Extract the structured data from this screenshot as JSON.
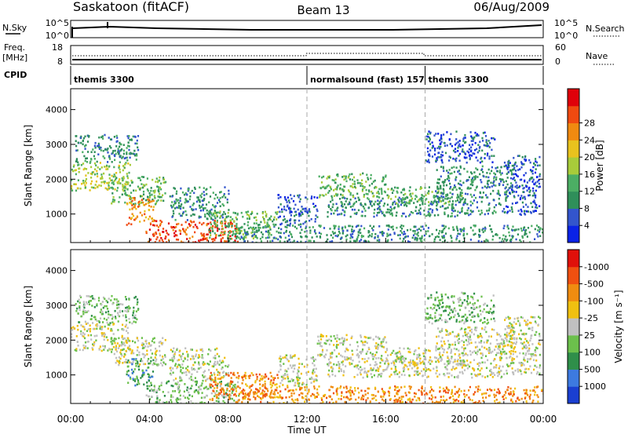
{
  "header": {
    "station": "Saskatoon (fitACF)",
    "beam": "Beam 13",
    "date": "06/Aug/2009"
  },
  "top_panels": {
    "nsky_label": "N.Sky",
    "nsky_ticks": [
      "10^5",
      "10^0"
    ],
    "nsearch_label": "N.Search",
    "nsearch_ticks": [
      "10^5",
      "10^0"
    ],
    "freq_label": "Freq.",
    "freq_unit": "[MHz]",
    "freq_ticks": [
      "18",
      "8"
    ],
    "nave_label": "Nave",
    "nave_ticks": [
      "60",
      "0"
    ],
    "cpid_label": "CPID",
    "cpid_segments": [
      {
        "label": "themis 3300",
        "start_h": 0
      },
      {
        "label": "normalsound (fast) 157",
        "start_h": 12
      },
      {
        "label": "themis 3300",
        "start_h": 18
      }
    ]
  },
  "chart_data": [
    {
      "type": "heatmap",
      "panel": "power",
      "ylabel": "Slant Range [km]",
      "y_ticks": [
        1000,
        2000,
        3000,
        4000
      ],
      "ylim": [
        180,
        4600
      ],
      "xlim": [
        0,
        24
      ],
      "colorbar_label": "Power [dB]",
      "colorbar_ticks": [
        "4",
        "8",
        "12",
        "16",
        "20",
        "24",
        "28"
      ],
      "colorbar_colors": [
        "#0a22e6",
        "#3355cc",
        "#2f8f5a",
        "#4cae64",
        "#a8cc3a",
        "#e8c21e",
        "#f08a10",
        "#f04a10",
        "#e0000a"
      ],
      "regions": [
        {
          "h0": 0.0,
          "h1": 3.0,
          "r0": 1700,
          "r1": 2500,
          "level": 16
        },
        {
          "h0": 0.2,
          "h1": 3.4,
          "r0": 2500,
          "r1": 3300,
          "level": 8
        },
        {
          "h0": 2.0,
          "h1": 4.8,
          "r0": 1300,
          "r1": 2100,
          "level": 12
        },
        {
          "h0": 2.8,
          "h1": 4.2,
          "r0": 700,
          "r1": 1500,
          "level": 24
        },
        {
          "h0": 3.8,
          "h1": 8.5,
          "r0": 180,
          "r1": 850,
          "level": 28
        },
        {
          "h0": 5.0,
          "h1": 8.0,
          "r0": 850,
          "r1": 1800,
          "level": 8
        },
        {
          "h0": 7.0,
          "h1": 10.5,
          "r0": 300,
          "r1": 1100,
          "level": 12
        },
        {
          "h0": 8.0,
          "h1": 24.0,
          "r0": 180,
          "r1": 700,
          "level": 8
        },
        {
          "h0": 10.5,
          "h1": 12.5,
          "r0": 700,
          "r1": 1600,
          "level": 4
        },
        {
          "h0": 12.5,
          "h1": 16.0,
          "r0": 1500,
          "r1": 2200,
          "level": 12
        },
        {
          "h0": 13.0,
          "h1": 22.0,
          "r0": 950,
          "r1": 1500,
          "level": 8
        },
        {
          "h0": 16.0,
          "h1": 20.0,
          "r0": 1300,
          "r1": 1800,
          "level": 12
        },
        {
          "h0": 18.5,
          "h1": 22.5,
          "r0": 1500,
          "r1": 2400,
          "level": 8
        },
        {
          "h0": 22.0,
          "h1": 23.8,
          "r0": 1000,
          "r1": 2700,
          "level": 4
        },
        {
          "h0": 18.0,
          "h1": 21.5,
          "r0": 2500,
          "r1": 3400,
          "level": 4
        }
      ]
    },
    {
      "type": "heatmap",
      "panel": "velocity",
      "ylabel": "Slant Range [km]",
      "y_ticks": [
        1000,
        2000,
        3000,
        4000
      ],
      "ylim": [
        180,
        4600
      ],
      "xlim": [
        0,
        24
      ],
      "xlabel": "Time UT",
      "x_ticks": [
        "00:00",
        "04:00",
        "08:00",
        "12:00",
        "16:00",
        "20:00",
        "00:00"
      ],
      "colorbar_label": "Velocity [m s⁻¹]",
      "colorbar_ticks": [
        "1000",
        "500",
        "100",
        "25",
        "-25",
        "-100",
        "-500",
        "-1000"
      ],
      "colorbar_colors": [
        "#1a3fd0",
        "#3d7ae0",
        "#2f8f4a",
        "#6cc04c",
        "#c0c0c0",
        "#f0c010",
        "#f08c10",
        "#f05010",
        "#e0100a"
      ],
      "regions": [
        {
          "h0": 0.0,
          "h1": 3.0,
          "r0": 1700,
          "r1": 2500,
          "level": 25
        },
        {
          "h0": 0.2,
          "h1": 3.4,
          "r0": 2500,
          "r1": 3300,
          "level": 100
        },
        {
          "h0": 2.0,
          "h1": 4.8,
          "r0": 1300,
          "r1": 2100,
          "level": 25
        },
        {
          "h0": 2.8,
          "h1": 4.2,
          "r0": 700,
          "r1": 1500,
          "level": 500
        },
        {
          "h0": 3.8,
          "h1": 8.5,
          "r0": 180,
          "r1": 850,
          "level": 100
        },
        {
          "h0": 5.0,
          "h1": 8.0,
          "r0": 850,
          "r1": 1800,
          "level": 25
        },
        {
          "h0": 7.0,
          "h1": 10.5,
          "r0": 300,
          "r1": 1100,
          "level": -100
        },
        {
          "h0": 8.0,
          "h1": 24.0,
          "r0": 180,
          "r1": 700,
          "level": -100
        },
        {
          "h0": 10.5,
          "h1": 12.5,
          "r0": 700,
          "r1": 1600,
          "level": 25
        },
        {
          "h0": 12.5,
          "h1": 16.0,
          "r0": 1500,
          "r1": 2200,
          "level": 25
        },
        {
          "h0": 13.0,
          "h1": 22.0,
          "r0": 950,
          "r1": 1500,
          "level": 25
        },
        {
          "h0": 16.0,
          "h1": 20.0,
          "r0": 1300,
          "r1": 1800,
          "level": 25
        },
        {
          "h0": 18.5,
          "h1": 22.5,
          "r0": 1500,
          "r1": 2400,
          "level": 25
        },
        {
          "h0": 22.0,
          "h1": 23.8,
          "r0": 1000,
          "r1": 2700,
          "level": 25
        },
        {
          "h0": 18.0,
          "h1": 21.5,
          "r0": 2500,
          "r1": 3400,
          "level": 100
        }
      ]
    }
  ]
}
